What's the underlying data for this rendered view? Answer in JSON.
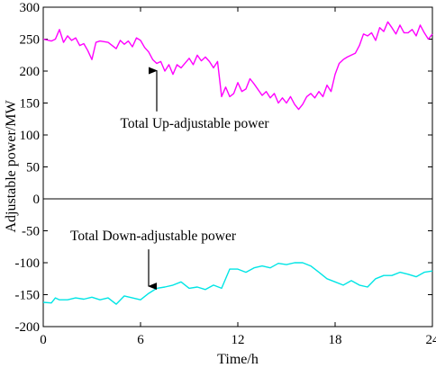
{
  "chart_data": {
    "type": "line",
    "xlabel": "Time/h",
    "ylabel": "Adjustable power/MW",
    "xlim": [
      0,
      24
    ],
    "ylim": [
      -200,
      300
    ],
    "xticks": [
      "0",
      "6",
      "12",
      "18",
      "24"
    ],
    "yticks": [
      "300",
      "250",
      "200",
      "150",
      "100",
      "50",
      "0",
      "-50",
      "-100",
      "-150",
      "-200"
    ],
    "grid": false,
    "zero_line": true,
    "series": [
      {
        "name": "Total Up-adjustable power",
        "color": "#ff00ff",
        "x": [
          0,
          0.5,
          0.75,
          1,
          1.25,
          1.5,
          1.75,
          2,
          2.25,
          2.5,
          2.75,
          3,
          3.25,
          3.5,
          4,
          4.5,
          4.75,
          5,
          5.25,
          5.5,
          5.75,
          6,
          6.25,
          6.5,
          6.75,
          7,
          7.25,
          7.5,
          7.75,
          8,
          8.25,
          8.5,
          9,
          9.25,
          9.5,
          9.75,
          10,
          10.25,
          10.5,
          10.75,
          11,
          11.25,
          11.5,
          11.75,
          12,
          12.25,
          12.5,
          12.75,
          13,
          13.5,
          13.75,
          14,
          14.25,
          14.5,
          14.75,
          15,
          15.25,
          15.5,
          15.75,
          16,
          16.25,
          16.5,
          16.75,
          17,
          17.25,
          17.5,
          17.75,
          18,
          18.25,
          18.5,
          18.75,
          19,
          19.25,
          19.5,
          19.75,
          20,
          20.25,
          20.5,
          20.75,
          21,
          21.25,
          21.5,
          21.75,
          22,
          22.25,
          22.5,
          22.75,
          23,
          23.25,
          23.5,
          23.75,
          24
        ],
        "y": [
          250,
          247,
          250,
          265,
          245,
          255,
          248,
          252,
          240,
          243,
          232,
          218,
          245,
          247,
          245,
          235,
          248,
          242,
          247,
          238,
          252,
          248,
          237,
          230,
          218,
          212,
          215,
          200,
          210,
          195,
          210,
          205,
          220,
          210,
          225,
          216,
          222,
          215,
          205,
          215,
          160,
          175,
          160,
          165,
          182,
          168,
          172,
          188,
          180,
          162,
          168,
          158,
          165,
          150,
          158,
          150,
          160,
          148,
          140,
          148,
          160,
          165,
          158,
          168,
          160,
          178,
          168,
          195,
          212,
          218,
          222,
          225,
          228,
          240,
          258,
          255,
          260,
          248,
          268,
          262,
          277,
          268,
          258,
          272,
          260,
          260,
          265,
          255,
          272,
          260,
          250,
          258
        ]
      },
      {
        "name": "Total Down-adjustable power",
        "color": "#00e5e5",
        "x": [
          0,
          0.5,
          0.75,
          1,
          1.5,
          2,
          2.5,
          3,
          3.5,
          4,
          4.5,
          5,
          5.5,
          6,
          6.5,
          7,
          7.5,
          8,
          8.5,
          9,
          9.5,
          10,
          10.5,
          11,
          11.5,
          12,
          12.5,
          13,
          13.5,
          14,
          14.5,
          15,
          15.5,
          16,
          16.5,
          17,
          17.5,
          18,
          18.5,
          19,
          19.5,
          20,
          20.5,
          21,
          21.5,
          22,
          22.5,
          23,
          23.5,
          24
        ],
        "y": [
          -162,
          -163,
          -155,
          -158,
          -158,
          -155,
          -157,
          -154,
          -158,
          -155,
          -165,
          -152,
          -155,
          -158,
          -148,
          -140,
          -138,
          -135,
          -130,
          -140,
          -138,
          -142,
          -135,
          -140,
          -110,
          -110,
          -115,
          -108,
          -105,
          -108,
          -101,
          -103,
          -100,
          -100,
          -105,
          -115,
          -125,
          -130,
          -135,
          -128,
          -135,
          -138,
          -125,
          -120,
          -120,
          -115,
          -118,
          -122,
          -115,
          -113
        ]
      }
    ],
    "annotations": [
      {
        "text": "Total Up-adjustable power",
        "x": 7,
        "y": 212,
        "label_y": 120
      },
      {
        "text": "Total Down-adjustable power",
        "x": 6.5,
        "y": -148,
        "label_y": -65
      }
    ]
  }
}
